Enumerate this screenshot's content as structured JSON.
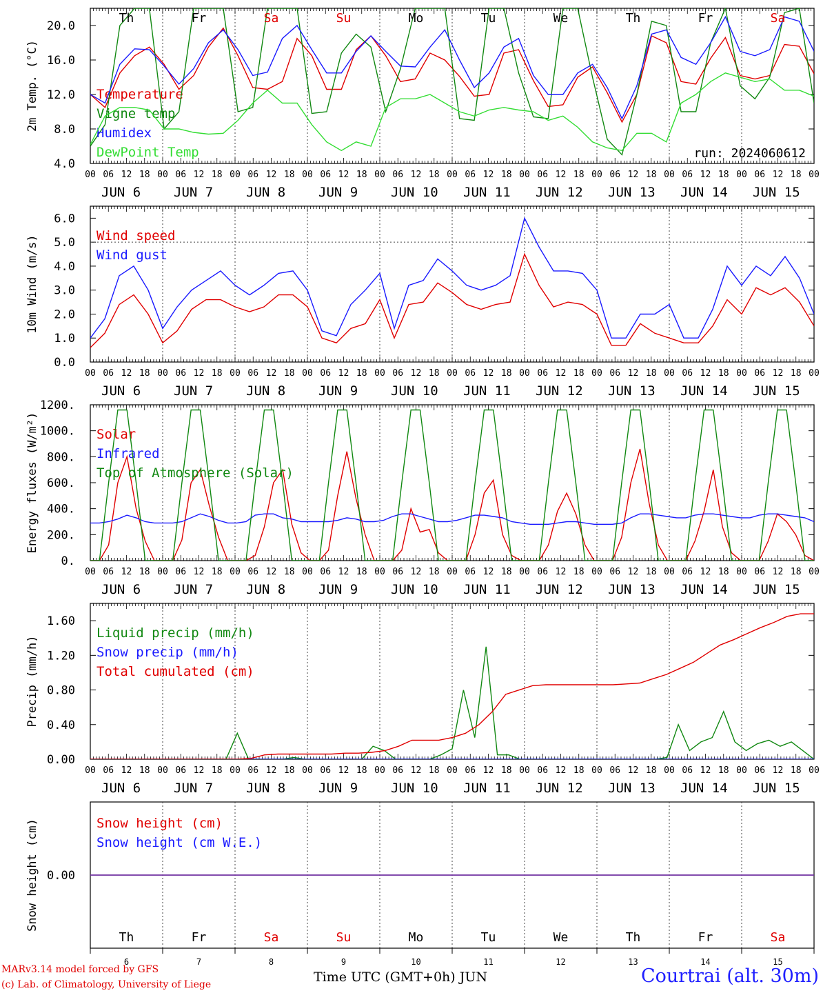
{
  "days": [
    "6",
    "7",
    "8",
    "9",
    "10",
    "11",
    "12",
    "13",
    "14",
    "15"
  ],
  "month": "JUN",
  "weekdays": [
    {
      "label": "Th",
      "color": "#000000"
    },
    {
      "label": "Fr",
      "color": "#000000"
    },
    {
      "label": "Sa",
      "color": "#e00000"
    },
    {
      "label": "Su",
      "color": "#e00000"
    },
    {
      "label": "Mo",
      "color": "#000000"
    },
    {
      "label": "Tu",
      "color": "#000000"
    },
    {
      "label": "We",
      "color": "#000000"
    },
    {
      "label": "Th",
      "color": "#000000"
    },
    {
      "label": "Fr",
      "color": "#000000"
    },
    {
      "label": "Sa",
      "color": "#e00000"
    }
  ],
  "hour_labels": [
    "00",
    "06",
    "12",
    "18"
  ],
  "run_label": "run: 2024060612",
  "footer": {
    "model": "MARv3.14 model forced by GFS",
    "credit": "(c) Lab. of Climatology, University of Liege",
    "x_title": "Time UTC (GMT+0h)",
    "month_tag": "JUN",
    "station": "Courtrai (alt. 30m)"
  },
  "colors": {
    "red": "#e00000",
    "green": "#118811",
    "blue": "#1a1aff",
    "lightgreen": "#33dd33",
    "purple": "#7030a0"
  },
  "chart_data": [
    {
      "type": "line",
      "ylabel": "2m Temp. (°C)",
      "ylim": [
        4,
        22
      ],
      "yticks": [
        "4.0",
        "8.0",
        "12.0",
        "16.0",
        "20.0"
      ],
      "ytick_values": [
        4,
        8,
        12,
        16,
        20
      ],
      "grid": "vertical dashed lines at midnight",
      "legend_placement": "left",
      "x_hours_step": 6,
      "series": [
        {
          "name": "Temperature",
          "color": "#e00000",
          "values": [
            12.0,
            10.5,
            14.5,
            16.5,
            17.5,
            15.5,
            12.6,
            14.2,
            17.5,
            19.7,
            16.5,
            12.8,
            12.6,
            13.5,
            18.5,
            16.5,
            12.6,
            12.6,
            17.2,
            18.8,
            16.5,
            13.5,
            13.8,
            16.8,
            16.0,
            14.1,
            11.8,
            12.0,
            16.8,
            17.2,
            13.6,
            10.6,
            10.8,
            14.0,
            15.2,
            12.2,
            8.8,
            12.0,
            18.8,
            18.0,
            13.5,
            13.2,
            16.2,
            18.6,
            14.2,
            13.8,
            14.2,
            17.8,
            17.6,
            14.4
          ]
        },
        {
          "name": "Vigne temp",
          "color": "#118811",
          "values": [
            6.0,
            8.5,
            20.0,
            22.0,
            22.0,
            8.0,
            10.0,
            22.0,
            22.0,
            22.0,
            10.0,
            10.5,
            22.0,
            22.0,
            22.0,
            9.8,
            10.0,
            16.8,
            19.0,
            17.5,
            10.0,
            15.0,
            22.0,
            22.0,
            22.0,
            9.2,
            9.0,
            22.0,
            22.0,
            14.5,
            9.4,
            9.2,
            22.0,
            22.0,
            14.0,
            6.8,
            5.0,
            12.0,
            20.5,
            20.0,
            10.0,
            10.0,
            18.0,
            22.0,
            13.0,
            11.5,
            14.0,
            21.5,
            22.0,
            11.0
          ]
        },
        {
          "name": "Humidex",
          "color": "#1a1aff",
          "values": [
            12.0,
            11.0,
            15.5,
            17.3,
            17.2,
            15.3,
            13.2,
            15.0,
            18.0,
            19.5,
            17.2,
            14.2,
            14.6,
            18.5,
            20.0,
            17.2,
            14.5,
            14.5,
            17.0,
            18.8,
            17.0,
            15.3,
            15.2,
            17.5,
            19.5,
            16.0,
            12.8,
            14.5,
            17.5,
            18.5,
            14.2,
            12.0,
            12.0,
            14.5,
            15.5,
            12.8,
            9.2,
            13.0,
            19.0,
            19.5,
            16.3,
            15.5,
            18.0,
            21.0,
            17.0,
            16.5,
            17.2,
            21.0,
            20.5,
            17.0
          ]
        },
        {
          "name": "DewPoint Temp",
          "color": "#33dd33",
          "values": [
            6.2,
            9.5,
            10.5,
            10.5,
            10.2,
            8.0,
            8.0,
            7.6,
            7.4,
            7.5,
            9.0,
            11.0,
            12.5,
            11.0,
            11.0,
            8.5,
            6.5,
            5.5,
            6.5,
            6.0,
            10.5,
            11.5,
            11.5,
            12.0,
            11.0,
            10.0,
            9.5,
            10.2,
            10.5,
            10.2,
            10.0,
            9.0,
            9.5,
            8.2,
            6.5,
            5.8,
            5.5,
            7.5,
            7.5,
            6.5,
            11.0,
            12.0,
            13.5,
            14.5,
            14.0,
            13.5,
            13.8,
            12.5,
            12.5,
            11.8
          ]
        }
      ]
    },
    {
      "type": "line",
      "ylabel": "10m Wind (m/s)",
      "ylim": [
        0,
        6.5
      ],
      "yticks": [
        "0.0",
        "1.0",
        "2.0",
        "3.0",
        "4.0",
        "5.0",
        "6.0"
      ],
      "ytick_values": [
        0,
        1,
        2,
        3,
        4,
        5,
        6
      ],
      "reference_line": 5.0,
      "legend_placement": "left",
      "x_hours_step": 6,
      "series": [
        {
          "name": "Wind speed",
          "color": "#e00000",
          "values": [
            0.6,
            1.2,
            2.4,
            2.8,
            2.0,
            0.8,
            1.3,
            2.2,
            2.6,
            2.6,
            2.3,
            2.1,
            2.3,
            2.8,
            2.8,
            2.3,
            1.0,
            0.8,
            1.4,
            1.6,
            2.6,
            1.0,
            2.4,
            2.5,
            3.3,
            2.9,
            2.4,
            2.2,
            2.4,
            2.5,
            4.5,
            3.2,
            2.3,
            2.5,
            2.4,
            2.0,
            0.7,
            0.7,
            1.6,
            1.2,
            1.0,
            0.8,
            0.8,
            1.5,
            2.6,
            2.0,
            3.1,
            2.8,
            3.1,
            2.5,
            1.5
          ]
        },
        {
          "name": "Wind gust",
          "color": "#1a1aff",
          "values": [
            1.0,
            1.8,
            3.6,
            4.0,
            3.0,
            1.4,
            2.3,
            3.0,
            3.4,
            3.8,
            3.2,
            2.8,
            3.2,
            3.7,
            3.8,
            3.0,
            1.3,
            1.1,
            2.4,
            3.0,
            3.7,
            1.4,
            3.2,
            3.4,
            4.3,
            3.8,
            3.2,
            3.0,
            3.2,
            3.6,
            6.0,
            4.8,
            3.8,
            3.8,
            3.7,
            3.0,
            1.0,
            1.0,
            2.0,
            2.0,
            2.4,
            1.0,
            1.0,
            2.2,
            4.0,
            3.2,
            4.0,
            3.6,
            4.4,
            3.5,
            2.0
          ]
        }
      ]
    },
    {
      "type": "line",
      "ylabel": "Energy fluxes (W/m²)",
      "ylim": [
        0,
        1200
      ],
      "yticks": [
        "0.",
        "200.",
        "400.",
        "600.",
        "800.",
        "1000.",
        "1200."
      ],
      "ytick_values": [
        0,
        200,
        400,
        600,
        800,
        1000,
        1200
      ],
      "legend_placement": "left",
      "x_hours_step": 3,
      "series": [
        {
          "name": "Solar",
          "color": "#e00000",
          "values": [
            0,
            0,
            120,
            600,
            800,
            400,
            150,
            0,
            0,
            0,
            160,
            600,
            700,
            420,
            180,
            0,
            0,
            0,
            40,
            260,
            600,
            700,
            280,
            60,
            0,
            0,
            80,
            500,
            840,
            480,
            200,
            0,
            0,
            0,
            80,
            400,
            220,
            240,
            60,
            0,
            0,
            0,
            200,
            520,
            620,
            200,
            40,
            0,
            0,
            0,
            120,
            380,
            520,
            360,
            120,
            0,
            0,
            0,
            180,
            600,
            860,
            440,
            120,
            0,
            0,
            0,
            150,
            380,
            700,
            260,
            60,
            0,
            0,
            0,
            150,
            360,
            300,
            200,
            40,
            0
          ]
        },
        {
          "name": "Infrared",
          "color": "#1a1aff",
          "values": [
            290,
            290,
            300,
            320,
            350,
            330,
            300,
            290,
            290,
            290,
            300,
            330,
            360,
            340,
            310,
            290,
            290,
            300,
            350,
            360,
            360,
            330,
            320,
            300,
            300,
            300,
            300,
            310,
            330,
            320,
            300,
            300,
            310,
            340,
            360,
            360,
            340,
            320,
            300,
            300,
            310,
            330,
            350,
            350,
            340,
            330,
            300,
            290,
            280,
            280,
            280,
            290,
            300,
            300,
            290,
            280,
            280,
            280,
            290,
            330,
            360,
            360,
            350,
            340,
            330,
            330,
            350,
            360,
            360,
            350,
            340,
            330,
            330,
            350,
            360,
            360,
            350,
            340,
            330,
            300
          ]
        },
        {
          "name": "Top of Atmosphere (Solar)",
          "color": "#118811",
          "values": [
            0,
            0,
            600,
            1160,
            1160,
            600,
            0,
            0,
            0,
            0,
            600,
            1160,
            1160,
            600,
            0,
            0,
            0,
            0,
            600,
            1160,
            1160,
            600,
            0,
            0,
            0,
            0,
            600,
            1160,
            1160,
            600,
            0,
            0,
            0,
            0,
            600,
            1160,
            1160,
            600,
            0,
            0,
            0,
            0,
            600,
            1160,
            1160,
            600,
            0,
            0,
            0,
            0,
            600,
            1160,
            1160,
            600,
            0,
            0,
            0,
            0,
            600,
            1160,
            1160,
            600,
            0,
            0,
            0,
            0,
            600,
            1160,
            1160,
            600,
            0,
            0,
            0,
            0,
            600,
            1160,
            1160,
            600,
            0,
            0
          ]
        }
      ]
    },
    {
      "type": "line",
      "ylabel": "Precip (mm/h)",
      "ylim": [
        0,
        1.8
      ],
      "yticks": [
        "0.00",
        "0.40",
        "0.80",
        "1.20",
        "1.60"
      ],
      "ytick_values": [
        0,
        0.4,
        0.8,
        1.2,
        1.6
      ],
      "legend_placement": "left",
      "x_hours_step": 6,
      "series": [
        {
          "name": "Liquid precip (mm/h)",
          "color": "#118811",
          "values": [
            0,
            0,
            0,
            0,
            0,
            0,
            0,
            0,
            0,
            0,
            0,
            0,
            0,
            0.3,
            0,
            0,
            0,
            0,
            0.02,
            0,
            0,
            0,
            0,
            0,
            0,
            0.15,
            0.1,
            0,
            0,
            0,
            0,
            0.05,
            0.12,
            0.8,
            0.25,
            1.3,
            0.05,
            0.05,
            0,
            0,
            0,
            0,
            0,
            0,
            0,
            0,
            0,
            0,
            0,
            0,
            0,
            0.02,
            0.4,
            0.1,
            0.2,
            0.25,
            0.55,
            0.2,
            0.1,
            0.18,
            0.22,
            0.15,
            0.2,
            0.1,
            0
          ]
        },
        {
          "name": "Snow precip (mm/h)",
          "color": "#1a1aff",
          "values": [
            0,
            0,
            0,
            0,
            0,
            0,
            0,
            0,
            0,
            0,
            0,
            0,
            0,
            0,
            0,
            0,
            0,
            0,
            0,
            0,
            0,
            0,
            0,
            0,
            0,
            0,
            0,
            0,
            0,
            0,
            0,
            0,
            0,
            0,
            0,
            0,
            0,
            0,
            0,
            0,
            0,
            0
          ]
        },
        {
          "name": "Total cumulated (cm)",
          "color": "#e00000",
          "values": [
            0,
            0,
            0,
            0,
            0,
            0,
            0,
            0,
            0,
            0,
            0,
            0,
            0.01,
            0.05,
            0.06,
            0.06,
            0.06,
            0.06,
            0.06,
            0.07,
            0.07,
            0.08,
            0.1,
            0.15,
            0.22,
            0.22,
            0.22,
            0.25,
            0.3,
            0.4,
            0.55,
            0.75,
            0.8,
            0.85,
            0.86,
            0.86,
            0.86,
            0.86,
            0.86,
            0.86,
            0.87,
            0.88,
            0.93,
            0.98,
            1.05,
            1.12,
            1.22,
            1.32,
            1.38,
            1.45,
            1.52,
            1.58,
            1.65,
            1.68,
            1.68
          ]
        }
      ]
    },
    {
      "type": "line",
      "ylabel": "Snow height (cm)",
      "ylim": [
        -0.5,
        0.5
      ],
      "yticks": [
        "0.00"
      ],
      "ytick_values": [
        0
      ],
      "legend_placement": "left",
      "series": [
        {
          "name": "Snow height (cm)",
          "color": "#e00000",
          "values": [
            0,
            0
          ]
        },
        {
          "name": "Snow height (cm W.E.)",
          "color": "#1a1aff",
          "values": [
            0,
            0
          ]
        }
      ]
    }
  ]
}
